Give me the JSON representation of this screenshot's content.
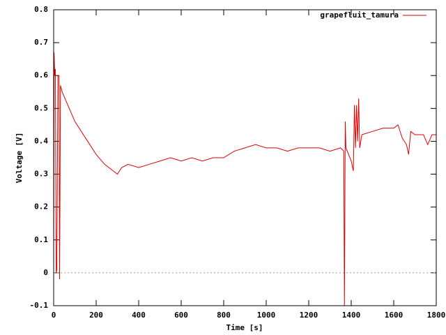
{
  "chart_data": {
    "type": "line",
    "xlabel": "Time [s]",
    "ylabel": "Voltage [V]",
    "xlim": [
      0,
      1800
    ],
    "xticks": [
      0,
      200,
      400,
      600,
      800,
      1000,
      1200,
      1400,
      1600,
      1800
    ],
    "ylim": [
      -0.1,
      0.8
    ],
    "yticks": [
      -0.1,
      0,
      0.1,
      0.2,
      0.3,
      0.4,
      0.5,
      0.6,
      0.7,
      0.8
    ],
    "zero_line": true,
    "legend": "top-right",
    "x": [
      0,
      2,
      5,
      8,
      12,
      15,
      20,
      25,
      28,
      32,
      40,
      60,
      80,
      100,
      130,
      160,
      200,
      240,
      280,
      300,
      320,
      350,
      400,
      450,
      500,
      550,
      600,
      650,
      700,
      750,
      800,
      850,
      900,
      950,
      1000,
      1050,
      1100,
      1150,
      1200,
      1250,
      1300,
      1350,
      1365,
      1368,
      1370,
      1372,
      1375,
      1400,
      1410,
      1415,
      1420,
      1425,
      1430,
      1435,
      1440,
      1450,
      1500,
      1550,
      1600,
      1620,
      1640,
      1660,
      1670,
      1680,
      1700,
      1740,
      1760,
      1780,
      1800
    ],
    "series": [
      {
        "name": "grapefluit_tamura",
        "color": "#e00000",
        "values": [
          0.0,
          0.67,
          0.6,
          0.62,
          0.0,
          0.01,
          0.6,
          0.6,
          -0.02,
          0.57,
          0.55,
          0.52,
          0.49,
          0.46,
          0.43,
          0.4,
          0.36,
          0.33,
          0.31,
          0.3,
          0.32,
          0.33,
          0.32,
          0.33,
          0.34,
          0.35,
          0.34,
          0.35,
          0.34,
          0.35,
          0.35,
          0.37,
          0.38,
          0.39,
          0.38,
          0.38,
          0.37,
          0.38,
          0.38,
          0.38,
          0.37,
          0.38,
          0.37,
          -0.1,
          0.15,
          0.46,
          0.38,
          0.34,
          0.31,
          0.51,
          0.38,
          0.51,
          0.4,
          0.53,
          0.38,
          0.42,
          0.43,
          0.44,
          0.44,
          0.45,
          0.41,
          0.39,
          0.36,
          0.43,
          0.42,
          0.42,
          0.39,
          0.42,
          0.42
        ]
      }
    ]
  }
}
